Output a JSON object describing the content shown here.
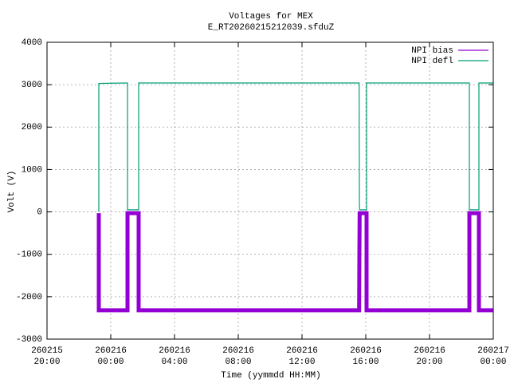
{
  "chart_data": {
    "type": "line",
    "title": "Voltages for MEX",
    "subtitle": "E_RT20260215212039.sfduZ",
    "x_label": "Time (yymmdd HH:MM)",
    "y_label": "Volt (V)",
    "xlim": [
      "260215 20:00",
      "260217 00:00"
    ],
    "xticks": [
      "260215 20:00",
      "260216 00:00",
      "260216 04:00",
      "260216 08:00",
      "260216 12:00",
      "260216 16:00",
      "260216 20:00",
      "260217 00:00"
    ],
    "ylim": [
      -3000,
      4000
    ],
    "yticks": [
      -3000,
      -2000,
      -1000,
      0,
      1000,
      2000,
      3000,
      4000
    ],
    "grid": true,
    "legend": "top right",
    "x": [
      "260215 23:12",
      "260215 23:15",
      "260215 23:15",
      "260216 01:00",
      "260216 01:03",
      "260216 01:03",
      "260216 01:45",
      "260216 01:45",
      "260216 15:35",
      "260216 15:36",
      "260216 15:37",
      "260216 16:03",
      "260216 16:03",
      "260216 22:30",
      "260216 22:30",
      "260216 23:06",
      "260216 23:06",
      "260216 23:59"
    ],
    "series": [
      {
        "name": "NPI bias",
        "color": "#9400d3",
        "values": [
          null,
          -30,
          -2320,
          -2320,
          -2320,
          -30,
          -30,
          -2320,
          -2320,
          -1000,
          -30,
          -30,
          -2320,
          -2320,
          -30,
          -30,
          -2320,
          -2320
        ]
      },
      {
        "name": "NPI defl",
        "color": "#009e73",
        "values": [
          30,
          30,
          3030,
          3040,
          3040,
          50,
          50,
          3040,
          3040,
          200,
          50,
          50,
          3040,
          3040,
          50,
          50,
          3040,
          3040
        ]
      }
    ]
  }
}
